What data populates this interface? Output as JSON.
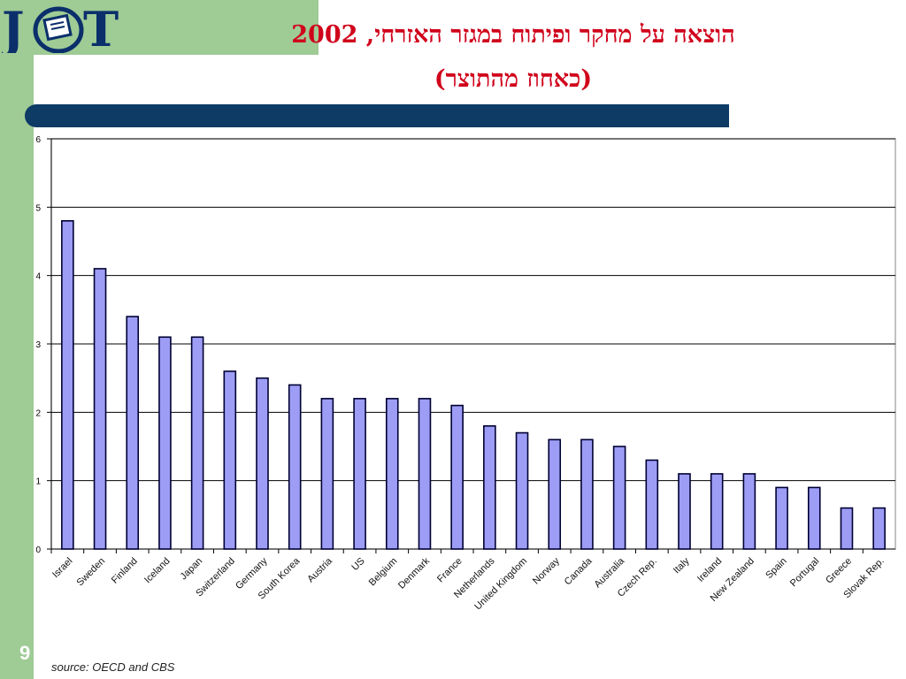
{
  "slide": {
    "title_line1": "הוצאה על מחקר ופיתוח במגזר האזרחי, 2002",
    "title_line2": "(כאחוז מהתוצר)",
    "logo_text": "JCT",
    "slide_number": "9",
    "source": "source: OECD and CBS"
  },
  "colors": {
    "bar_fill": "#9d9df5",
    "bar_stroke": "#000033",
    "title": "#d0021b",
    "header_bar": "#0e3a66",
    "side_green": "#9fcb95"
  },
  "chart_data": {
    "type": "bar",
    "categories": [
      "Israel",
      "Sweden",
      "Finland",
      "Iceland",
      "Japan",
      "Switzerland",
      "Germany",
      "South Korea",
      "Austria",
      "US",
      "Belgium",
      "Denmark",
      "France",
      "Netherlands",
      "United Kingdom",
      "Norway",
      "Canada",
      "Australia",
      "Czech Rep.",
      "Italy",
      "Ireland",
      "New Zealand",
      "Spain",
      "Portugal",
      "Greece",
      "Slovak Rep."
    ],
    "values": [
      4.8,
      4.1,
      3.4,
      3.1,
      3.1,
      2.6,
      2.5,
      2.4,
      2.2,
      2.2,
      2.2,
      2.2,
      2.1,
      1.8,
      1.7,
      1.6,
      1.6,
      1.5,
      1.3,
      1.1,
      1.1,
      1.1,
      0.9,
      0.9,
      0.6,
      0.6
    ],
    "ylim": [
      0,
      6
    ],
    "yticks": [
      "0",
      "1",
      "2",
      "3",
      "4",
      "5",
      "6"
    ],
    "grid": true,
    "legend": "none"
  }
}
